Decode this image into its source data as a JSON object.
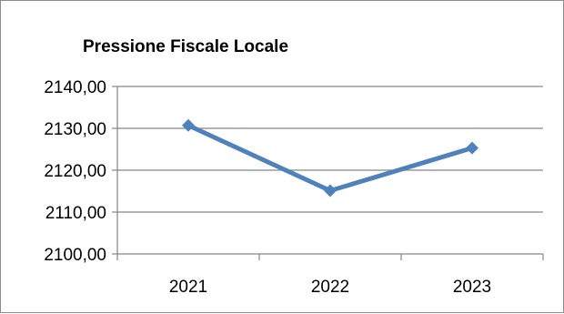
{
  "chart_data": {
    "type": "line",
    "title": "Pressione Fiscale Locale",
    "xlabel": "",
    "ylabel": "",
    "categories": [
      "2021",
      "2022",
      "2023"
    ],
    "series": [
      {
        "values": [
          2130.7,
          2115.1,
          2125.3
        ]
      }
    ],
    "ylim": [
      2100,
      2140
    ],
    "yticks": [
      "2100,00",
      "2110,00",
      "2120,00",
      "2130,00",
      "2140,00"
    ],
    "ytick_values": [
      2100,
      2110,
      2120,
      2130,
      2140
    ],
    "grid": true,
    "line_color": "#4f81bd",
    "marker": "diamond"
  }
}
